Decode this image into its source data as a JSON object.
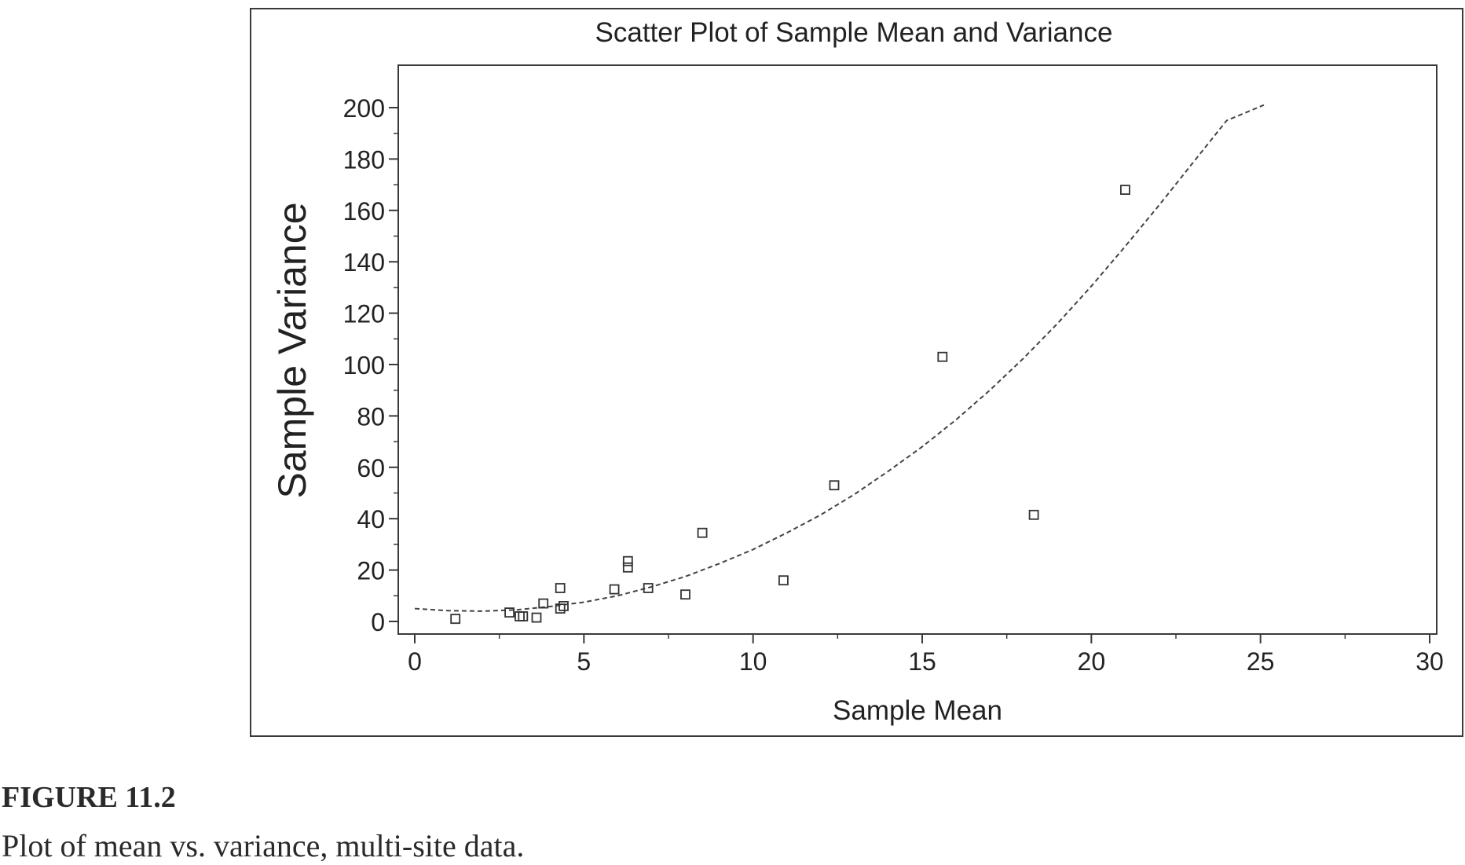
{
  "chart_data": {
    "type": "scatter",
    "title": "Scatter Plot of Sample Mean and Variance",
    "xlabel": "Sample Mean",
    "ylabel": "Sample Variance",
    "xlim": [
      0,
      30
    ],
    "ylim": [
      0,
      200
    ],
    "xticks": [
      "0",
      "5",
      "10",
      "15",
      "20",
      "25",
      "30"
    ],
    "yticks": [
      "0",
      "20",
      "40",
      "60",
      "80",
      "100",
      "120",
      "140",
      "160",
      "180",
      "200"
    ],
    "grid": false,
    "points": [
      {
        "x": 1.2,
        "y": 1
      },
      {
        "x": 2.8,
        "y": 3.5
      },
      {
        "x": 3.1,
        "y": 2
      },
      {
        "x": 3.2,
        "y": 2
      },
      {
        "x": 3.6,
        "y": 1.5
      },
      {
        "x": 3.8,
        "y": 7
      },
      {
        "x": 4.3,
        "y": 13
      },
      {
        "x": 4.3,
        "y": 5
      },
      {
        "x": 4.4,
        "y": 6
      },
      {
        "x": 5.9,
        "y": 12.5
      },
      {
        "x": 6.3,
        "y": 21
      },
      {
        "x": 6.3,
        "y": 23.5
      },
      {
        "x": 6.9,
        "y": 13
      },
      {
        "x": 8.0,
        "y": 10.5
      },
      {
        "x": 8.5,
        "y": 34.5
      },
      {
        "x": 10.9,
        "y": 16
      },
      {
        "x": 12.4,
        "y": 53
      },
      {
        "x": 15.6,
        "y": 103
      },
      {
        "x": 18.3,
        "y": 41.5
      },
      {
        "x": 21.0,
        "y": 168
      }
    ],
    "fit_curve": {
      "style": "dashed",
      "x": [
        0,
        1,
        2,
        3,
        4,
        5,
        6,
        7,
        8,
        9,
        10,
        11,
        12,
        13,
        14,
        15,
        16,
        17,
        18,
        19,
        20,
        21,
        22,
        23,
        24,
        25.1
      ],
      "y": [
        5,
        4.2,
        4,
        4.5,
        5.8,
        7.5,
        10,
        13.5,
        17.5,
        22.5,
        28,
        34.5,
        41.5,
        49.5,
        58.5,
        68,
        78.5,
        90,
        102.5,
        116,
        130.5,
        146,
        162,
        178.5,
        195,
        201
      ]
    }
  },
  "caption": {
    "label": "FIGURE 11.2",
    "text": "Plot of mean vs. variance, multi-site data."
  }
}
